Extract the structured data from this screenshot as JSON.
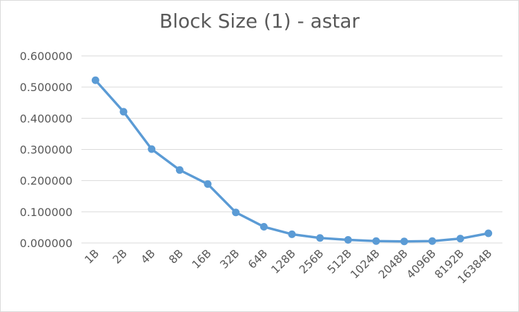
{
  "chart_data": {
    "type": "line",
    "title": "Block Size (1) - astar",
    "categories": [
      "1B",
      "2B",
      "4B",
      "8B",
      "16B",
      "32B",
      "64B",
      "128B",
      "256B",
      "512B",
      "1024B",
      "2048B",
      "4096B",
      "8192B",
      "16384B"
    ],
    "series": [
      {
        "values": [
          0.522,
          0.421,
          0.301,
          0.234,
          0.189,
          0.098,
          0.052,
          0.028,
          0.016,
          0.01,
          0.006,
          0.005,
          0.006,
          0.014,
          0.031
        ]
      }
    ],
    "yticks": [
      "0.000000",
      "0.100000",
      "0.200000",
      "0.300000",
      "0.400000",
      "0.500000",
      "0.600000"
    ],
    "ylim": [
      0,
      0.6
    ],
    "xlabel": "",
    "ylabel": "",
    "grid": true,
    "legend": "none",
    "color": "#5b9bd5"
  }
}
